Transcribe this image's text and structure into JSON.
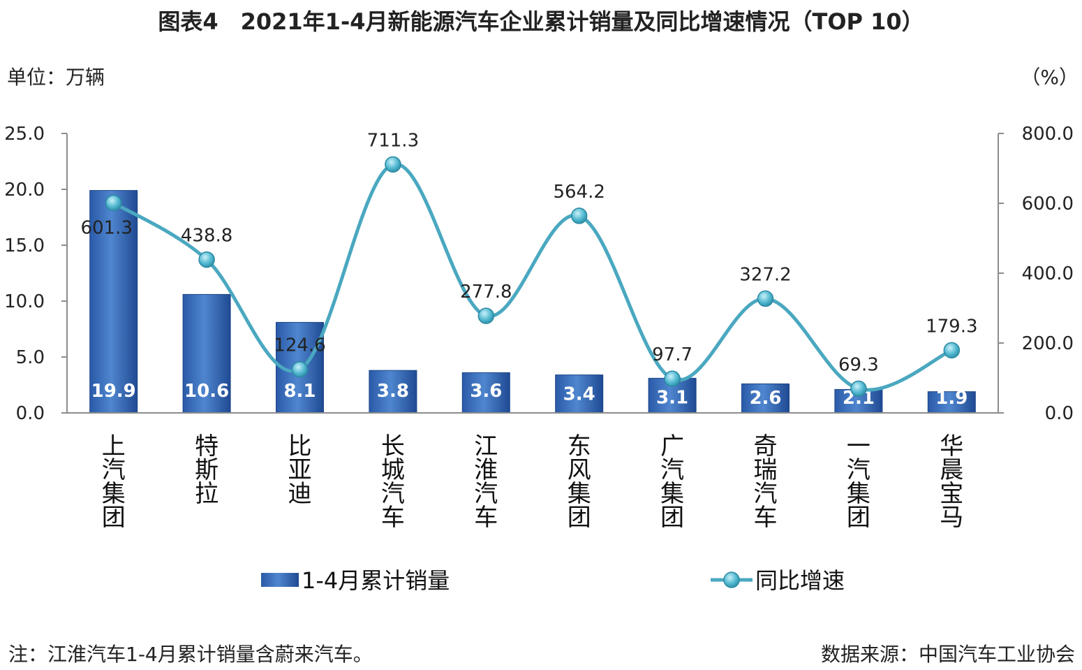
{
  "title": "图表4　2021年1-4月新能源汽车企业累计销量及同比增速情况（TOP 10）",
  "left_unit": "单位：万辆",
  "right_unit": "（%）",
  "note": "注：江淮汽车1-4月累计销量含蔚来汽车。",
  "source": "数据来源：中国汽车工业协会",
  "colors": {
    "bar": "#3a6fb8",
    "bar_dark": "#1f4f96",
    "line": "#4aa8c0",
    "marker": "#5cc0d6"
  },
  "chart_data": {
    "type": "bar",
    "categories": [
      "上汽集团",
      "特斯拉",
      "比亚迪",
      "长城汽车",
      "江淮汽车",
      "东风集团",
      "广汽集团",
      "奇瑞汽车",
      "一汽集团",
      "华晨宝马"
    ],
    "series": [
      {
        "name": "1-4月累计销量",
        "type": "bar",
        "axis": "left",
        "values": [
          19.9,
          10.6,
          8.1,
          3.8,
          3.6,
          3.4,
          3.1,
          2.6,
          2.1,
          1.9
        ],
        "labels": [
          "19.9",
          "10.6",
          "8.1",
          "3.8",
          "3.6",
          "3.4",
          "3.1",
          "2.6",
          "2.1",
          "1.9"
        ]
      },
      {
        "name": "同比增速",
        "type": "line",
        "axis": "right",
        "values": [
          601.3,
          438.8,
          124.6,
          711.3,
          277.8,
          564.2,
          97.7,
          327.2,
          69.3,
          179.3
        ],
        "labels": [
          "601.3",
          "438.8",
          "124.6",
          "711.3",
          "277.8",
          "564.2",
          "97.7",
          "327.2",
          "69.3",
          "179.3"
        ]
      }
    ],
    "y_left": {
      "ylim": [
        0,
        25
      ],
      "ticks": [
        "0.0",
        "5.0",
        "10.0",
        "15.0",
        "20.0",
        "25.0"
      ]
    },
    "y_right": {
      "ylim": [
        0,
        800
      ],
      "ticks": [
        "0.0",
        "200.0",
        "400.0",
        "600.0",
        "800.0"
      ]
    },
    "grid": false,
    "legend": "bottom"
  }
}
